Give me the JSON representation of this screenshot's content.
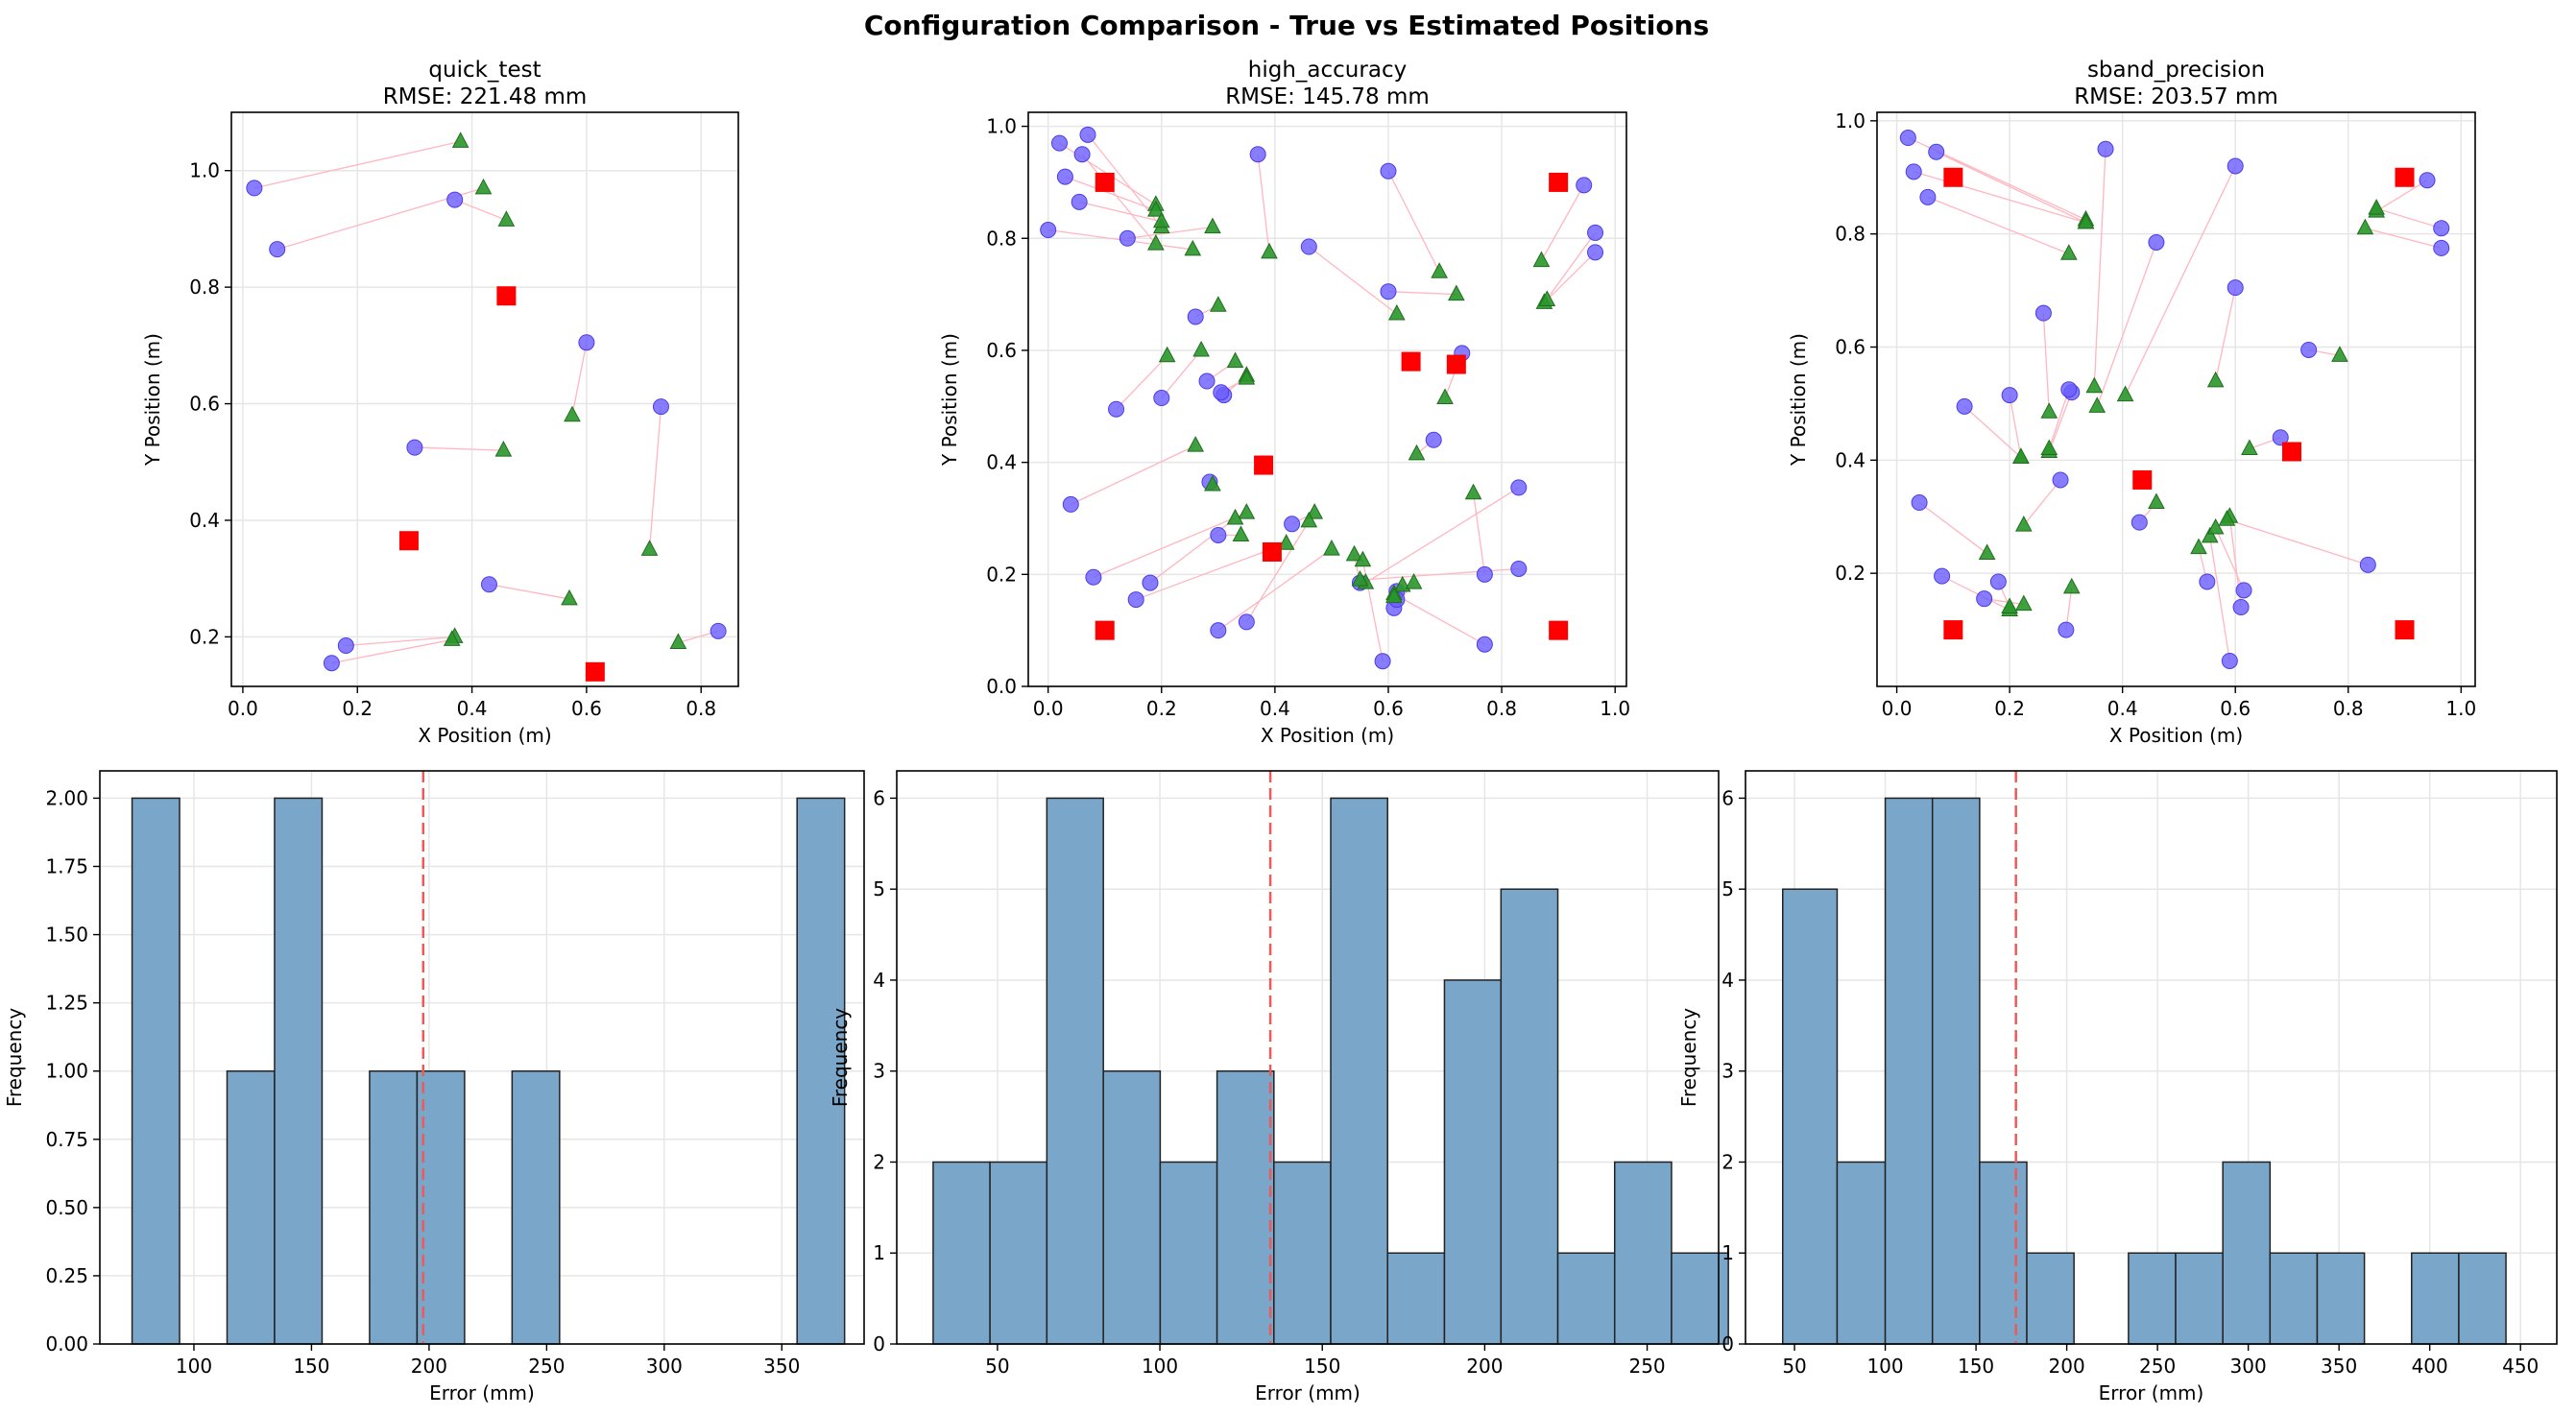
{
  "figure": {
    "title": "Configuration Comparison - True vs Estimated Positions"
  },
  "colors": {
    "anchor": "#ff0000",
    "true_pos": "#6a5cff",
    "estimated": "#2a962a",
    "error_line": "#ffb6c1",
    "hist_fill": "#7aa6ca",
    "hist_edge": "#222222",
    "mean_line": "#ec5b5b",
    "grid": "#e6e6e6"
  },
  "chart_data": [
    {
      "type": "scatter",
      "title": "quick_test",
      "subtitle": "RMSE: 221.48 mm",
      "xlabel": "X Position (m)",
      "ylabel": "Y Position (m)",
      "xlim": [
        -0.02,
        0.865
      ],
      "ylim": [
        0.115,
        1.1
      ],
      "xticks": [
        0.0,
        0.2,
        0.4,
        0.6,
        0.8
      ],
      "yticks": [
        0.2,
        0.4,
        0.6,
        0.8,
        1.0
      ],
      "tick_decimals": 1,
      "grid": true,
      "anchors": [
        [
          0.46,
          0.785
        ],
        [
          0.29,
          0.365
        ],
        [
          0.615,
          0.14
        ]
      ],
      "pairs": [
        [
          [
            0.02,
            0.97
          ],
          [
            0.38,
            1.05
          ]
        ],
        [
          [
            0.06,
            0.865
          ],
          [
            0.42,
            0.97
          ]
        ],
        [
          [
            0.37,
            0.95
          ],
          [
            0.46,
            0.915
          ]
        ],
        [
          [
            0.6,
            0.705
          ],
          [
            0.575,
            0.58
          ]
        ],
        [
          [
            0.73,
            0.595
          ],
          [
            0.71,
            0.35
          ]
        ],
        [
          [
            0.3,
            0.525
          ],
          [
            0.455,
            0.52
          ]
        ],
        [
          [
            0.43,
            0.29
          ],
          [
            0.57,
            0.265
          ]
        ],
        [
          [
            0.18,
            0.185
          ],
          [
            0.37,
            0.2
          ]
        ],
        [
          [
            0.155,
            0.155
          ],
          [
            0.365,
            0.195
          ]
        ],
        [
          [
            0.83,
            0.21
          ],
          [
            0.76,
            0.19
          ]
        ]
      ]
    },
    {
      "type": "scatter",
      "title": "high_accuracy",
      "subtitle": "RMSE: 145.78 mm",
      "xlabel": "X Position (m)",
      "ylabel": "Y Position (m)",
      "xlim": [
        -0.035,
        1.02
      ],
      "ylim": [
        0.0,
        1.025
      ],
      "xticks": [
        0.0,
        0.2,
        0.4,
        0.6,
        0.8,
        1.0
      ],
      "yticks": [
        0.0,
        0.2,
        0.4,
        0.6,
        0.8,
        1.0
      ],
      "tick_decimals": 1,
      "grid": true,
      "anchors": [
        [
          0.1,
          0.9
        ],
        [
          0.9,
          0.9
        ],
        [
          0.38,
          0.395
        ],
        [
          0.64,
          0.58
        ],
        [
          0.72,
          0.575
        ],
        [
          0.395,
          0.24
        ],
        [
          0.1,
          0.1
        ],
        [
          0.9,
          0.1
        ]
      ],
      "pairs": [
        [
          [
            0.02,
            0.97
          ],
          [
            0.19,
            0.86
          ]
        ],
        [
          [
            0.07,
            0.985
          ],
          [
            0.2,
            0.82
          ]
        ],
        [
          [
            0.06,
            0.95
          ],
          [
            0.19,
            0.79
          ]
        ],
        [
          [
            0.03,
            0.91
          ],
          [
            0.19,
            0.85
          ]
        ],
        [
          [
            0.055,
            0.865
          ],
          [
            0.2,
            0.83
          ]
        ],
        [
          [
            0.0,
            0.815
          ],
          [
            0.255,
            0.78
          ]
        ],
        [
          [
            0.14,
            0.8
          ],
          [
            0.29,
            0.82
          ]
        ],
        [
          [
            0.37,
            0.95
          ],
          [
            0.39,
            0.775
          ]
        ],
        [
          [
            0.46,
            0.785
          ],
          [
            0.615,
            0.665
          ]
        ],
        [
          [
            0.6,
            0.92
          ],
          [
            0.69,
            0.74
          ]
        ],
        [
          [
            0.6,
            0.705
          ],
          [
            0.72,
            0.7
          ]
        ],
        [
          [
            0.945,
            0.895
          ],
          [
            0.87,
            0.76
          ]
        ],
        [
          [
            0.965,
            0.81
          ],
          [
            0.875,
            0.685
          ]
        ],
        [
          [
            0.965,
            0.775
          ],
          [
            0.88,
            0.69
          ]
        ],
        [
          [
            0.26,
            0.66
          ],
          [
            0.3,
            0.68
          ]
        ],
        [
          [
            0.73,
            0.595
          ],
          [
            0.7,
            0.515
          ]
        ],
        [
          [
            0.12,
            0.495
          ],
          [
            0.21,
            0.59
          ]
        ],
        [
          [
            0.2,
            0.515
          ],
          [
            0.27,
            0.6
          ]
        ],
        [
          [
            0.28,
            0.545
          ],
          [
            0.33,
            0.58
          ]
        ],
        [
          [
            0.31,
            0.52
          ],
          [
            0.35,
            0.555
          ]
        ],
        [
          [
            0.305,
            0.525
          ],
          [
            0.35,
            0.55
          ]
        ],
        [
          [
            0.68,
            0.44
          ],
          [
            0.65,
            0.415
          ]
        ],
        [
          [
            0.04,
            0.325
          ],
          [
            0.26,
            0.43
          ]
        ],
        [
          [
            0.285,
            0.365
          ],
          [
            0.29,
            0.36
          ]
        ],
        [
          [
            0.3,
            0.27
          ],
          [
            0.34,
            0.27
          ]
        ],
        [
          [
            0.43,
            0.29
          ],
          [
            0.47,
            0.31
          ]
        ],
        [
          [
            0.08,
            0.195
          ],
          [
            0.35,
            0.31
          ]
        ],
        [
          [
            0.18,
            0.185
          ],
          [
            0.33,
            0.3
          ]
        ],
        [
          [
            0.155,
            0.155
          ],
          [
            0.42,
            0.255
          ]
        ],
        [
          [
            0.35,
            0.115
          ],
          [
            0.46,
            0.295
          ]
        ],
        [
          [
            0.3,
            0.1
          ],
          [
            0.5,
            0.245
          ]
        ],
        [
          [
            0.55,
            0.185
          ],
          [
            0.54,
            0.235
          ]
        ],
        [
          [
            0.59,
            0.045
          ],
          [
            0.555,
            0.225
          ]
        ],
        [
          [
            0.615,
            0.17
          ],
          [
            0.625,
            0.18
          ]
        ],
        [
          [
            0.61,
            0.14
          ],
          [
            0.645,
            0.185
          ]
        ],
        [
          [
            0.77,
            0.075
          ],
          [
            0.61,
            0.165
          ]
        ],
        [
          [
            0.77,
            0.2
          ],
          [
            0.75,
            0.345
          ]
        ],
        [
          [
            0.83,
            0.355
          ],
          [
            0.56,
            0.185
          ]
        ],
        [
          [
            0.83,
            0.21
          ],
          [
            0.55,
            0.19
          ]
        ],
        [
          [
            0.615,
            0.155
          ],
          [
            0.61,
            0.16
          ]
        ]
      ]
    },
    {
      "type": "scatter",
      "title": "sband_precision",
      "subtitle": "RMSE: 203.57 mm",
      "xlabel": "X Position (m)",
      "ylabel": "Y Position (m)",
      "xlim": [
        -0.035,
        1.025
      ],
      "ylim": [
        0.0,
        1.015
      ],
      "xticks": [
        0.0,
        0.2,
        0.4,
        0.6,
        0.8,
        1.0
      ],
      "yticks": [
        0.2,
        0.4,
        0.6,
        0.8,
        1.0
      ],
      "tick_decimals": 1,
      "grid": true,
      "anchors": [
        [
          0.1,
          0.9
        ],
        [
          0.9,
          0.9
        ],
        [
          0.435,
          0.365
        ],
        [
          0.7,
          0.415
        ],
        [
          0.1,
          0.1
        ],
        [
          0.9,
          0.1
        ]
      ],
      "pairs": [
        [
          [
            0.02,
            0.97
          ],
          [
            0.335,
            0.825
          ]
        ],
        [
          [
            0.07,
            0.945
          ],
          [
            0.335,
            0.82
          ]
        ],
        [
          [
            0.03,
            0.91
          ],
          [
            0.335,
            0.82
          ]
        ],
        [
          [
            0.055,
            0.865
          ],
          [
            0.305,
            0.765
          ]
        ],
        [
          [
            0.37,
            0.95
          ],
          [
            0.35,
            0.53
          ]
        ],
        [
          [
            0.46,
            0.785
          ],
          [
            0.355,
            0.495
          ]
        ],
        [
          [
            0.6,
            0.92
          ],
          [
            0.405,
            0.515
          ]
        ],
        [
          [
            0.94,
            0.895
          ],
          [
            0.85,
            0.84
          ]
        ],
        [
          [
            0.965,
            0.81
          ],
          [
            0.85,
            0.845
          ]
        ],
        [
          [
            0.965,
            0.775
          ],
          [
            0.83,
            0.81
          ]
        ],
        [
          [
            0.26,
            0.66
          ],
          [
            0.27,
            0.485
          ]
        ],
        [
          [
            0.6,
            0.705
          ],
          [
            0.565,
            0.54
          ]
        ],
        [
          [
            0.73,
            0.595
          ],
          [
            0.785,
            0.585
          ]
        ],
        [
          [
            0.12,
            0.495
          ],
          [
            0.22,
            0.405
          ]
        ],
        [
          [
            0.2,
            0.515
          ],
          [
            0.22,
            0.405
          ]
        ],
        [
          [
            0.31,
            0.52
          ],
          [
            0.27,
            0.415
          ]
        ],
        [
          [
            0.305,
            0.525
          ],
          [
            0.27,
            0.42
          ]
        ],
        [
          [
            0.68,
            0.44
          ],
          [
            0.625,
            0.42
          ]
        ],
        [
          [
            0.04,
            0.325
          ],
          [
            0.16,
            0.235
          ]
        ],
        [
          [
            0.29,
            0.365
          ],
          [
            0.225,
            0.285
          ]
        ],
        [
          [
            0.43,
            0.29
          ],
          [
            0.46,
            0.325
          ]
        ],
        [
          [
            0.08,
            0.195
          ],
          [
            0.2,
            0.135
          ]
        ],
        [
          [
            0.18,
            0.185
          ],
          [
            0.2,
            0.14
          ]
        ],
        [
          [
            0.155,
            0.155
          ],
          [
            0.225,
            0.145
          ]
        ],
        [
          [
            0.3,
            0.1
          ],
          [
            0.31,
            0.175
          ]
        ],
        [
          [
            0.55,
            0.185
          ],
          [
            0.535,
            0.245
          ]
        ],
        [
          [
            0.59,
            0.045
          ],
          [
            0.555,
            0.265
          ]
        ],
        [
          [
            0.615,
            0.17
          ],
          [
            0.565,
            0.28
          ]
        ],
        [
          [
            0.61,
            0.14
          ],
          [
            0.59,
            0.3
          ]
        ],
        [
          [
            0.835,
            0.215
          ],
          [
            0.585,
            0.295
          ]
        ]
      ]
    },
    {
      "type": "bar",
      "subtype": "histogram",
      "xlabel": "Error (mm)",
      "ylabel": "Frequency",
      "xlim": [
        60,
        385
      ],
      "ylim": [
        0,
        2.1
      ],
      "xticks": [
        100,
        150,
        200,
        250,
        300,
        350
      ],
      "yticks": [
        0.0,
        0.25,
        0.5,
        0.75,
        1.0,
        1.25,
        1.5,
        1.75,
        2.0
      ],
      "ytick_decimals": 2,
      "mean": 197.5,
      "grid": true,
      "bins": [
        {
          "start": 73.7,
          "end": 93.9,
          "count": 2
        },
        {
          "start": 114.1,
          "end": 134.3,
          "count": 1
        },
        {
          "start": 134.3,
          "end": 154.5,
          "count": 2
        },
        {
          "start": 174.7,
          "end": 194.9,
          "count": 1
        },
        {
          "start": 194.9,
          "end": 215.1,
          "count": 1
        },
        {
          "start": 235.3,
          "end": 255.5,
          "count": 1
        },
        {
          "start": 356.5,
          "end": 376.7,
          "count": 2
        }
      ]
    },
    {
      "type": "bar",
      "subtype": "histogram",
      "xlabel": "Error (mm)",
      "ylabel": "Frequency",
      "xlim": [
        19,
        272
      ],
      "ylim": [
        0,
        6.3
      ],
      "xticks": [
        50,
        100,
        150,
        200,
        250
      ],
      "yticks": [
        0,
        1,
        2,
        3,
        4,
        5,
        6
      ],
      "ytick_decimals": 0,
      "mean": 134,
      "grid": true,
      "bins": [
        {
          "start": 30.2,
          "end": 47.7,
          "count": 2
        },
        {
          "start": 47.7,
          "end": 65.2,
          "count": 2
        },
        {
          "start": 65.2,
          "end": 82.6,
          "count": 6
        },
        {
          "start": 82.6,
          "end": 100.1,
          "count": 3
        },
        {
          "start": 100.1,
          "end": 117.6,
          "count": 2
        },
        {
          "start": 117.6,
          "end": 135.1,
          "count": 3
        },
        {
          "start": 135.1,
          "end": 152.6,
          "count": 2
        },
        {
          "start": 152.6,
          "end": 170.1,
          "count": 6
        },
        {
          "start": 170.1,
          "end": 187.6,
          "count": 1
        },
        {
          "start": 187.6,
          "end": 205.0,
          "count": 4
        },
        {
          "start": 205.0,
          "end": 222.5,
          "count": 5
        },
        {
          "start": 222.5,
          "end": 240.0,
          "count": 1
        },
        {
          "start": 240.0,
          "end": 257.5,
          "count": 2
        },
        {
          "start": 257.5,
          "end": 275.0,
          "count": 1
        }
      ]
    },
    {
      "type": "bar",
      "subtype": "histogram",
      "xlabel": "Error (mm)",
      "ylabel": "Frequency",
      "xlim": [
        23,
        470
      ],
      "ylim": [
        0,
        6.3
      ],
      "xticks": [
        50,
        100,
        150,
        200,
        250,
        300,
        350,
        400,
        450
      ],
      "yticks": [
        0,
        1,
        2,
        3,
        4,
        5,
        6
      ],
      "ytick_decimals": 0,
      "mean": 172,
      "grid": true,
      "bins": [
        {
          "start": 43.5,
          "end": 73.5,
          "count": 5
        },
        {
          "start": 73.5,
          "end": 100.0,
          "count": 2
        },
        {
          "start": 100.0,
          "end": 126.0,
          "count": 6
        },
        {
          "start": 126.0,
          "end": 152.0,
          "count": 6
        },
        {
          "start": 152.0,
          "end": 178.0,
          "count": 2
        },
        {
          "start": 178.0,
          "end": 204.0,
          "count": 1
        },
        {
          "start": 234.0,
          "end": 260.0,
          "count": 1
        },
        {
          "start": 260.0,
          "end": 286.0,
          "count": 1
        },
        {
          "start": 286.0,
          "end": 312.0,
          "count": 2
        },
        {
          "start": 312.0,
          "end": 338.0,
          "count": 1
        },
        {
          "start": 338.0,
          "end": 364.0,
          "count": 1
        },
        {
          "start": 390.0,
          "end": 416.0,
          "count": 1
        },
        {
          "start": 416.0,
          "end": 442.0,
          "count": 1
        }
      ]
    }
  ]
}
